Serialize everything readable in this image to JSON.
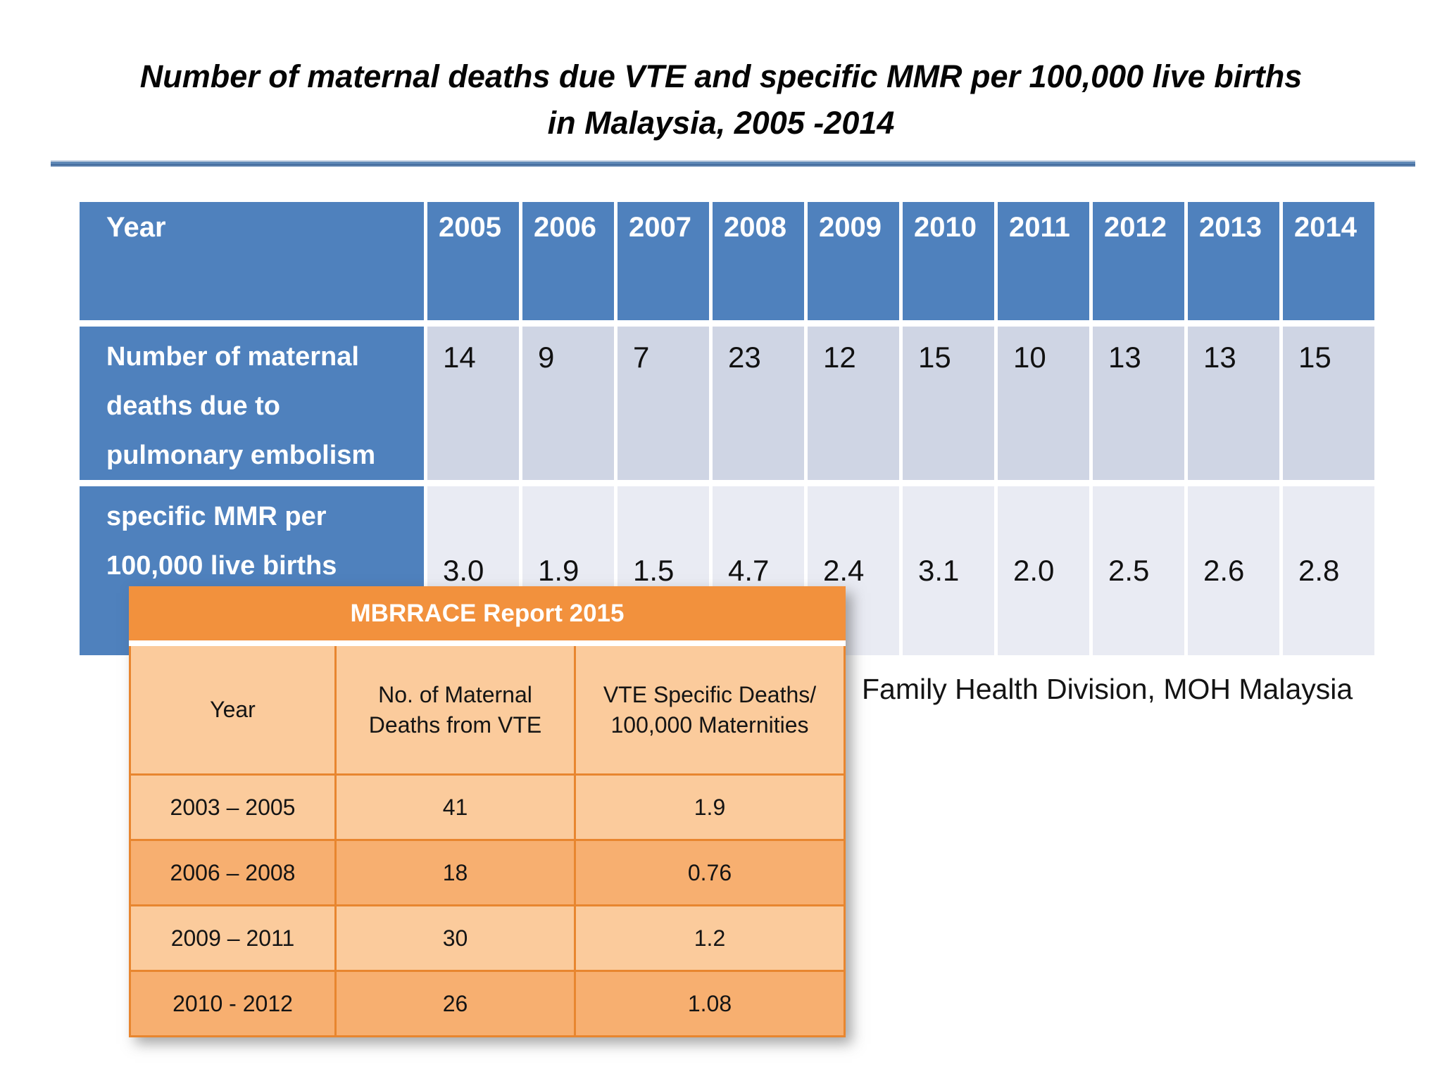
{
  "title": {
    "line1": "Number of maternal deaths due VTE and specific MMR per 100,000 live births",
    "line2": "in Malaysia, 2005 -2014"
  },
  "source_note": "Family Health Division, MOH Malaysia",
  "colors": {
    "table_header_blue": "#4F81BD",
    "row_band_blue_dark": "#CFD5E4",
    "row_band_blue_light": "#E9EBF3",
    "orange_header": "#F2913D",
    "orange_band_light": "#FBCB9C",
    "orange_band_dark": "#F7AF70",
    "orange_border": "#E8862F",
    "rule_blue": "#5C86B5"
  },
  "blue_table": {
    "header": {
      "label": "Year",
      "years": [
        "2005",
        "2006",
        "2007",
        "2008",
        "2009",
        "2010",
        "2011",
        "2012",
        "2013",
        "2014"
      ]
    },
    "rows": [
      {
        "label": "Number of maternal deaths due to pulmonary embolism",
        "values": [
          "14",
          "9",
          "7",
          "23",
          "12",
          "15",
          "10",
          "13",
          "13",
          "15"
        ]
      },
      {
        "label": "specific MMR per 100,000 live births",
        "values": [
          "3.0",
          "1.9",
          "1.5",
          "4.7",
          "2.4",
          "3.1",
          "2.0",
          "2.5",
          "2.6",
          "2.8"
        ]
      }
    ]
  },
  "orange_table": {
    "title": "MBRRACE Report 2015",
    "columns": [
      "Year",
      "No. of Maternal Deaths from VTE",
      "VTE Specific Deaths/ 100,000 Maternities"
    ],
    "rows": [
      {
        "year": "2003 – 2005",
        "deaths": "41",
        "rate": "1.9"
      },
      {
        "year": "2006 – 2008",
        "deaths": "18",
        "rate": "0.76"
      },
      {
        "year": "2009 – 2011",
        "deaths": "30",
        "rate": "1.2"
      },
      {
        "year": "2010 - 2012",
        "deaths": "26",
        "rate": "1.08"
      }
    ]
  },
  "chart_data": {
    "type": "table",
    "title": "Number of maternal deaths due VTE and specific MMR per 100,000 live births in Malaysia, 2005 -2014",
    "categories": [
      "2005",
      "2006",
      "2007",
      "2008",
      "2009",
      "2010",
      "2011",
      "2012",
      "2013",
      "2014"
    ],
    "series": [
      {
        "name": "Number of maternal deaths due to pulmonary embolism",
        "values": [
          14,
          9,
          7,
          23,
          12,
          15,
          10,
          13,
          13,
          15
        ]
      },
      {
        "name": "specific MMR per 100,000 live births",
        "values": [
          3.0,
          1.9,
          1.5,
          4.7,
          2.4,
          3.1,
          2.0,
          2.5,
          2.6,
          2.8
        ]
      }
    ]
  }
}
